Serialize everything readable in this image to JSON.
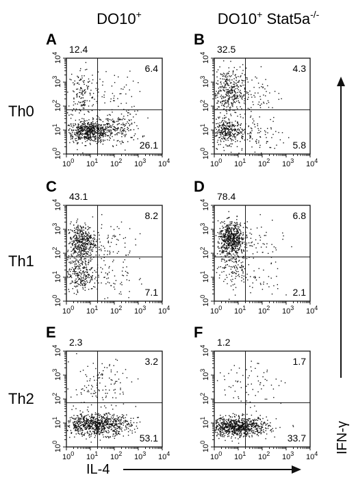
{
  "figure": {
    "column_headers": [
      {
        "base": "DO10",
        "sup": "+",
        "rest": "",
        "rest_sup": ""
      },
      {
        "base": "DO10",
        "sup": "+",
        "rest": " Stat5a",
        "rest_sup": "-/-"
      }
    ],
    "row_labels": [
      "Th0",
      "Th1",
      "Th2"
    ],
    "x_axis_label": "IL-4",
    "y_axis_label": "IFN-γ",
    "tick_labels": [
      {
        "base": "10",
        "exp": "0"
      },
      {
        "base": "10",
        "exp": "1"
      },
      {
        "base": "10",
        "exp": "2"
      },
      {
        "base": "10",
        "exp": "3"
      },
      {
        "base": "10",
        "exp": "4"
      }
    ]
  },
  "chart_data": [
    {
      "type": "scatter",
      "panel": "A",
      "condition": "Th0",
      "genotype": "DO10+",
      "x_scale": "log",
      "y_scale": "log",
      "xlim": [
        1,
        10000
      ],
      "ylim": [
        1,
        10000
      ],
      "quadrant_gates": {
        "x": 20,
        "y": 70
      },
      "quadrant_percentages": {
        "upper_left": "12.4",
        "upper_right": "6.4",
        "lower_right": "26.1"
      }
    },
    {
      "type": "scatter",
      "panel": "B",
      "condition": "Th0",
      "genotype": "DO10+ Stat5a-/-",
      "x_scale": "log",
      "y_scale": "log",
      "xlim": [
        1,
        10000
      ],
      "ylim": [
        1,
        10000
      ],
      "quadrant_gates": {
        "x": 20,
        "y": 70
      },
      "quadrant_percentages": {
        "upper_left": "32.5",
        "upper_right": "4.3",
        "lower_right": "5.8"
      }
    },
    {
      "type": "scatter",
      "panel": "C",
      "condition": "Th1",
      "genotype": "DO10+",
      "x_scale": "log",
      "y_scale": "log",
      "xlim": [
        1,
        10000
      ],
      "ylim": [
        1,
        10000
      ],
      "quadrant_gates": {
        "x": 20,
        "y": 70
      },
      "quadrant_percentages": {
        "upper_left": "43.1",
        "upper_right": "8.2",
        "lower_right": "7.1"
      }
    },
    {
      "type": "scatter",
      "panel": "D",
      "condition": "Th1",
      "genotype": "DO10+ Stat5a-/-",
      "x_scale": "log",
      "y_scale": "log",
      "xlim": [
        1,
        10000
      ],
      "ylim": [
        1,
        10000
      ],
      "quadrant_gates": {
        "x": 20,
        "y": 70
      },
      "quadrant_percentages": {
        "upper_left": "78.4",
        "upper_right": "6.8",
        "lower_right": "2.1"
      }
    },
    {
      "type": "scatter",
      "panel": "E",
      "condition": "Th2",
      "genotype": "DO10+",
      "x_scale": "log",
      "y_scale": "log",
      "xlim": [
        1,
        10000
      ],
      "ylim": [
        1,
        10000
      ],
      "quadrant_gates": {
        "x": 20,
        "y": 70
      },
      "quadrant_percentages": {
        "upper_left": "2.3",
        "upper_right": "3.2",
        "lower_right": "53.1"
      }
    },
    {
      "type": "scatter",
      "panel": "F",
      "condition": "Th2",
      "genotype": "DO10+ Stat5a-/-",
      "x_scale": "log",
      "y_scale": "log",
      "xlim": [
        1,
        10000
      ],
      "ylim": [
        1,
        10000
      ],
      "quadrant_gates": {
        "x": 20,
        "y": 70
      },
      "quadrant_percentages": {
        "upper_left": "1.2",
        "upper_right": "1.7",
        "lower_right": "33.7"
      }
    }
  ]
}
